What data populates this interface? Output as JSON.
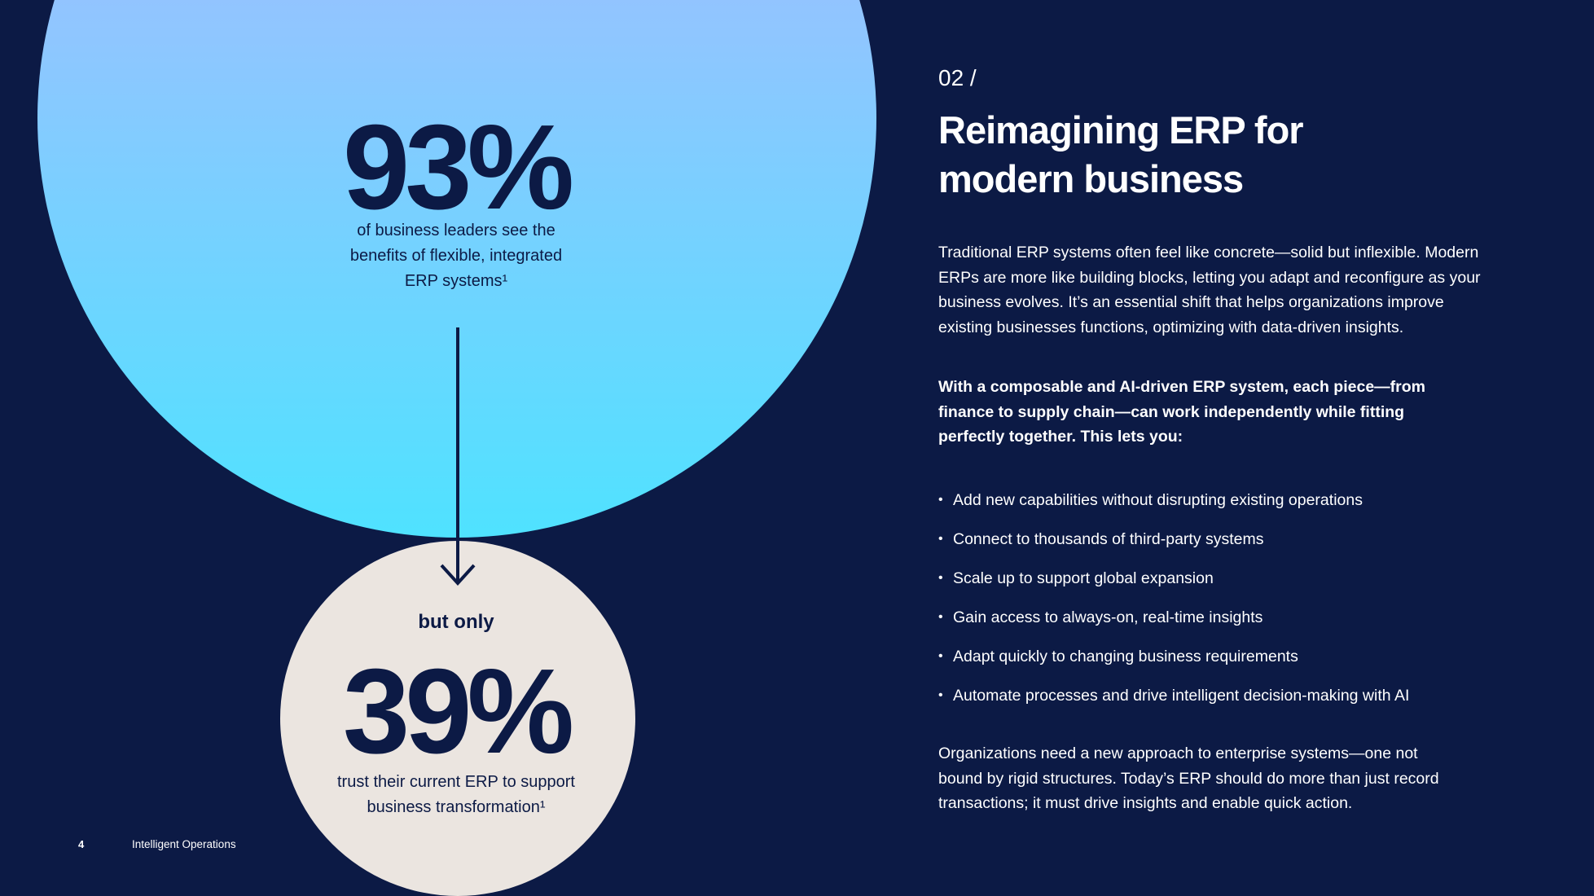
{
  "stats": {
    "first_value": "93%",
    "first_desc_line1": "of business leaders see the",
    "first_desc_line2": "benefits of flexible, integrated",
    "first_desc_line3": "ERP systems¹",
    "connector": "but only",
    "second_value": "39%",
    "second_desc_line1": "trust their current ERP to support",
    "second_desc_line2": "business transformation¹"
  },
  "section": {
    "number": "02 /",
    "title_line1": "Reimagining ERP for",
    "title_line2": "modern business"
  },
  "body": {
    "intro": "Traditional ERP systems often feel like concrete—solid but inflexible. Modern ERPs are more like building blocks, letting you adapt and reconfigure as your business evolves. It’s an essential shift that helps organizations improve existing businesses functions, optimizing with data-driven insights.",
    "lead": "With a composable and AI-driven ERP system, each piece—from finance to supply chain—can work independently while fitting perfectly together. This lets you:",
    "bullets": [
      "Add new capabilities without disrupting existing operations",
      "Connect to thousands of third-party systems",
      "Scale up to support global expansion",
      "Gain access to always-on, real-time insights",
      "Adapt quickly to changing business requirements",
      "Automate processes and drive intelligent decision-making with AI"
    ],
    "closing": "Organizations need a new approach to enterprise systems—one not bound by rigid structures. Today’s ERP should do more than just record transactions; it must drive insights and enable quick action."
  },
  "footer": {
    "page_number": "4",
    "title": "Intelligent Operations"
  },
  "colors": {
    "background": "#0c1a45",
    "gradient_top": "#a9b6ff",
    "gradient_bottom": "#4fe2ff",
    "small_circle": "#ebe5e0"
  },
  "icons": {
    "bullet": "bullet-dot",
    "arrow": "arrow-down-icon"
  }
}
